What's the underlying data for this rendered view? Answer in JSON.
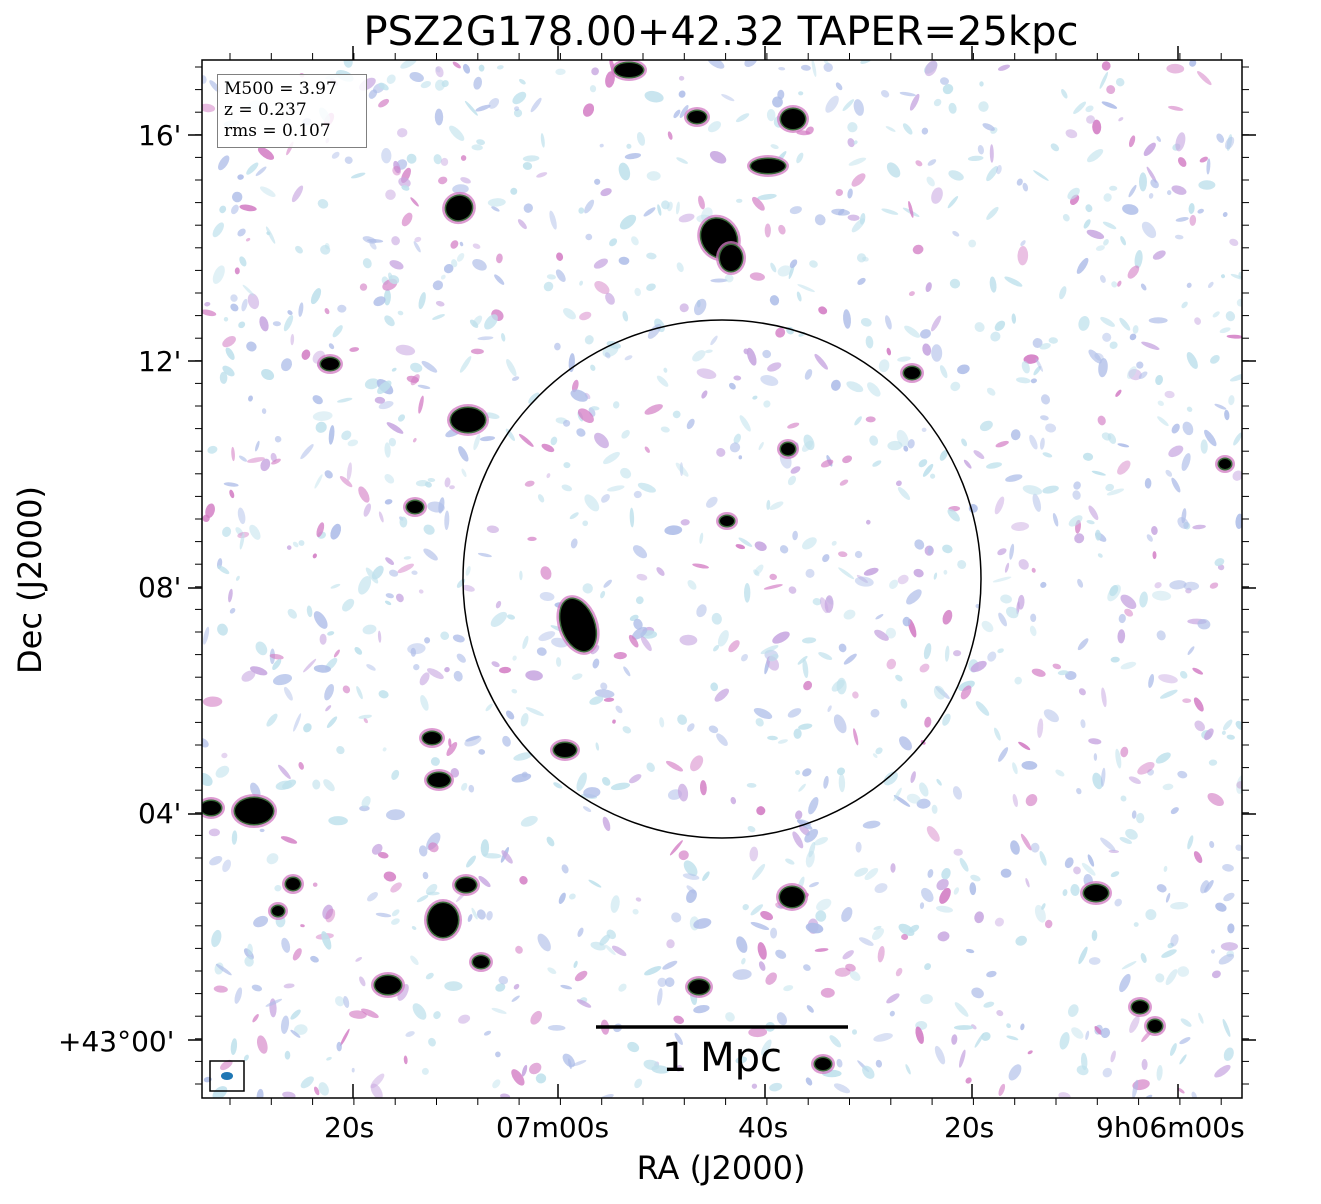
{
  "figure": {
    "title": "PSZ2G178.00+42.32 TAPER=25kpc",
    "xlabel": "RA (J2000)",
    "ylabel": "Dec (J2000)",
    "x_ticks": [
      "20s",
      "07m00s",
      "40s",
      "20s",
      "9h06m00s"
    ],
    "y_ticks": [
      "16'",
      "12'",
      "08'",
      "04'",
      "+43°00'"
    ],
    "info_box": {
      "m500": "M500 = 3.97",
      "z": "z = 0.237",
      "rms": "rms = 0.107"
    },
    "scale_bar_label": "1 Mpc",
    "colors": {
      "noise_light": "#bfe1ec",
      "noise_blue": "#aebde8",
      "noise_purple": "#c7a6e0",
      "noise_magenta": "#d27ac3",
      "source_core": "#000000",
      "source_rim": "#3a6b3a",
      "circle": "#000000"
    }
  }
}
